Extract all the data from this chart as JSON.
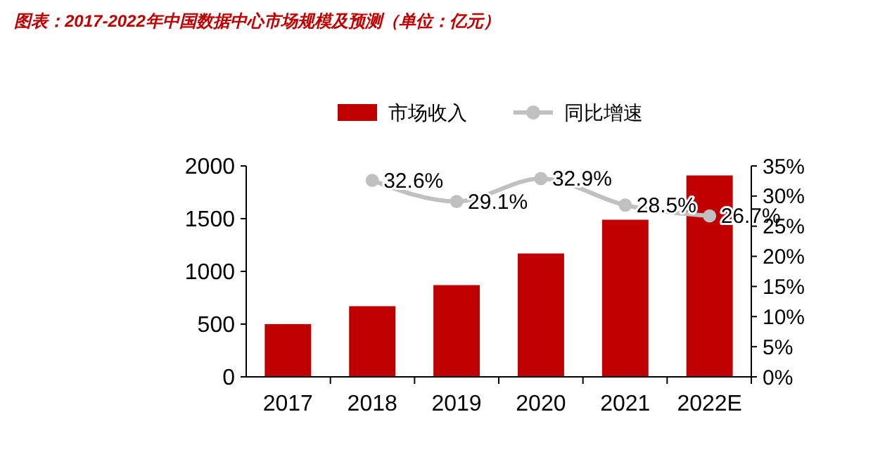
{
  "chart_data": {
    "type": "bar",
    "title": "图表：2017-2022年中国数据中心市场规模及预测（单位：亿元）",
    "categories": [
      "2017",
      "2018",
      "2019",
      "2020",
      "2021",
      "2022E"
    ],
    "series": [
      {
        "name": "市场收入",
        "color": "#c00000",
        "values": [
          500,
          670,
          870,
          1170,
          1490,
          1910
        ]
      },
      {
        "name": "同比增速",
        "type": "line",
        "axis": "y2",
        "color": "#c0c0c0",
        "marker": "circle",
        "values": [
          null,
          32.6,
          29.1,
          32.9,
          28.5,
          26.7
        ],
        "value_labels": [
          null,
          "32.6%",
          "29.1%",
          "32.9%",
          "28.5%",
          "26.7%"
        ]
      }
    ],
    "ylim": [
      0,
      2000
    ],
    "yticks": [
      0,
      500,
      1000,
      1500,
      2000
    ],
    "y2lim": [
      0,
      35
    ],
    "y2ticks": [
      {
        "value": 0,
        "label": "0%"
      },
      {
        "value": 5,
        "label": "5%"
      },
      {
        "value": 10,
        "label": "10%"
      },
      {
        "value": 15,
        "label": "15%"
      },
      {
        "value": 20,
        "label": "20%"
      },
      {
        "value": 25,
        "label": "25%"
      },
      {
        "value": 30,
        "label": "30%"
      },
      {
        "value": 35,
        "label": "35%"
      }
    ],
    "legend": "top",
    "grid": false
  }
}
